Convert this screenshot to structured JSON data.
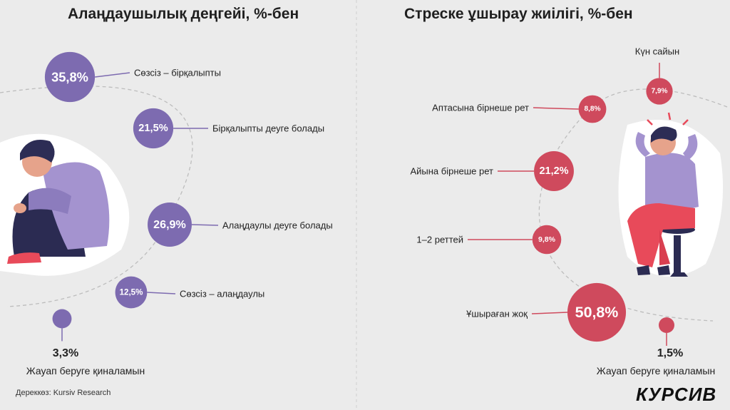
{
  "source": "Дереккөз: Kursiv Research",
  "logo": "КУРСИВ",
  "colors": {
    "purple": "#7d6bb0",
    "red": "#cf4a5d",
    "line": "#bdbdbd",
    "background": "#ebebeb"
  },
  "chart_data": [
    {
      "type": "bubble",
      "title": "Алаңдаушылық деңгейі, %-бен",
      "categories": [
        "Сөзсіз – бірқалыпты",
        "Бірқалыпты деуге болады",
        "Алаңдаулы деуге болады",
        "Сөзсіз – алаңдаулы",
        "Жауап беруге қиналамын"
      ],
      "values": [
        35.8,
        21.5,
        26.9,
        12.5,
        3.3
      ],
      "value_labels": [
        "35,8%",
        "21,5%",
        "26,9%",
        "12,5%",
        "3,3%"
      ],
      "color": "#7d6bb0"
    },
    {
      "type": "bubble",
      "title": "Стреске ұшырау жиілігі, %-бен",
      "categories": [
        "Күн сайын",
        "Аптасына бірнеше рет",
        "Айына бірнеше рет",
        "1–2 реттей",
        "Ұшыраған жоқ",
        "Жауап беруге қиналамын"
      ],
      "values": [
        7.9,
        8.8,
        21.2,
        9.8,
        50.8,
        1.5
      ],
      "value_labels": [
        "7,9%",
        "8,8%",
        "21,2%",
        "9,8%",
        "50,8%",
        "1,5%"
      ],
      "color": "#cf4a5d"
    }
  ]
}
